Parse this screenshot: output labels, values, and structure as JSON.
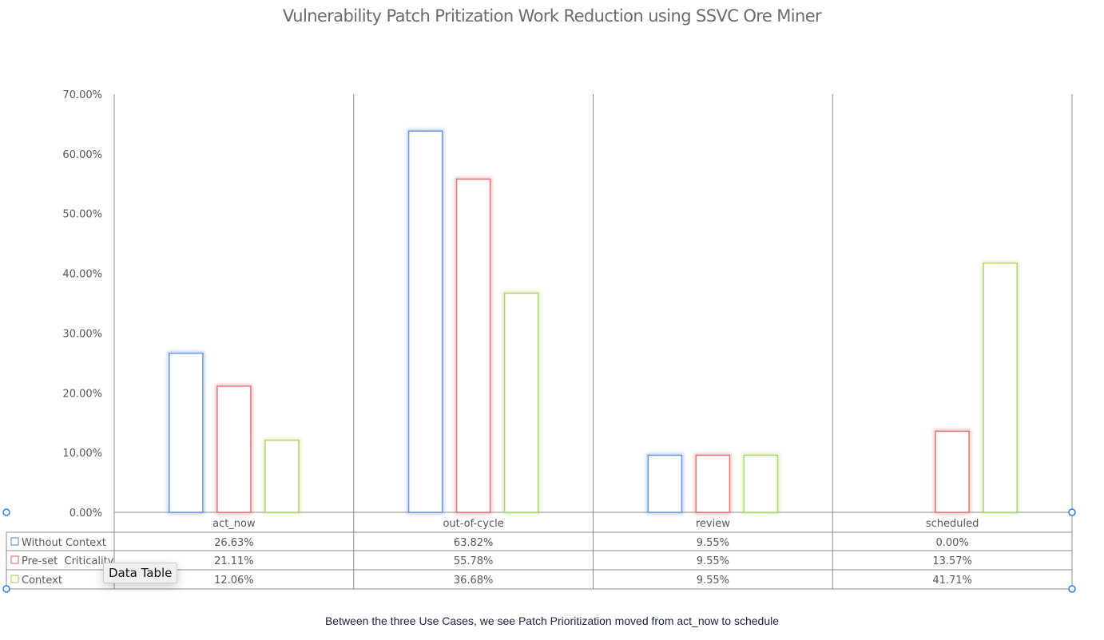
{
  "chart_data": {
    "type": "bar",
    "title": "Vulnerability Patch Pritization Work Reduction using SSVC Ore Miner",
    "categories": [
      "act_now",
      "out-of-cycle",
      "review",
      "scheduled"
    ],
    "series": [
      {
        "name": "Without Context",
        "color": "#4f81d9",
        "values": [
          26.63,
          63.82,
          9.55,
          0.0
        ],
        "labels": [
          "26.63%",
          "63.82%",
          "9.55%",
          "0.00%"
        ]
      },
      {
        "name": "Pre-set  Criticality",
        "color": "#e05b5b",
        "values": [
          21.11,
          55.78,
          9.55,
          13.57
        ],
        "labels": [
          "21.11%",
          "55.78%",
          "9.55%",
          "13.57%"
        ]
      },
      {
        "name": "Context",
        "color": "#9bcf4f",
        "values": [
          12.06,
          36.68,
          9.55,
          41.71
        ],
        "labels": [
          "12.06%",
          "36.68%",
          "9.55%",
          "41.71%"
        ]
      }
    ],
    "yticks": [
      "0.00%",
      "10.00%",
      "20.00%",
      "30.00%",
      "40.00%",
      "50.00%",
      "60.00%",
      "70.00%"
    ],
    "ylim": [
      0,
      70
    ],
    "xlabel": "",
    "ylabel": "",
    "legend": "data-table",
    "grid": "vertical category dividers"
  },
  "tooltip": "Data Table",
  "caption": "Between the three Use Cases, we see Patch Prioritization moved from act_now to schedule"
}
